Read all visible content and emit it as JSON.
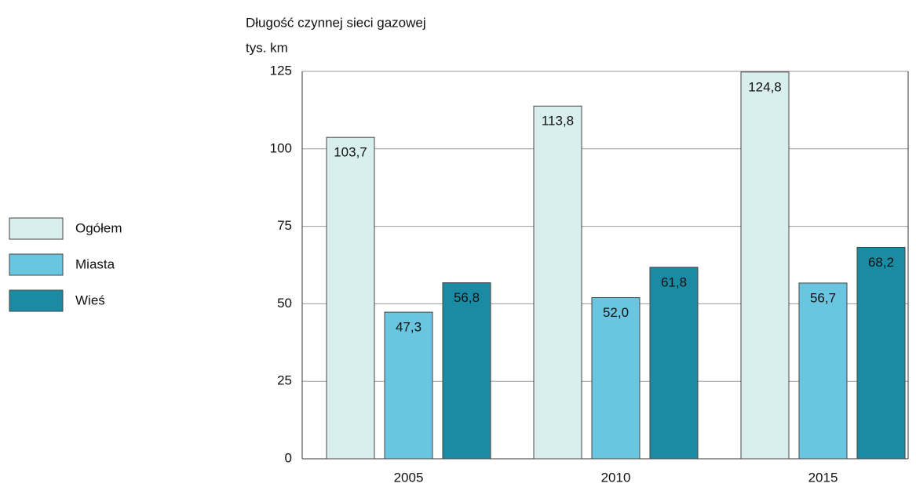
{
  "chart_data": {
    "type": "bar",
    "title": "Długość czynnej sieci gazowej",
    "y_label": "tys. km",
    "categories": [
      "2005",
      "2010",
      "2015"
    ],
    "series": [
      {
        "name": "Ogółem",
        "color": "#d9efee",
        "values": [
          103.7,
          113.8,
          124.8
        ],
        "value_labels": [
          "103,7",
          "113,8",
          "124,8"
        ]
      },
      {
        "name": "Miasta",
        "color": "#6ac6e0",
        "values": [
          47.3,
          52.0,
          56.7
        ],
        "value_labels": [
          "47,3",
          "52,0",
          "56,7"
        ]
      },
      {
        "name": "Wieś",
        "color": "#1a8ba3",
        "values": [
          56.8,
          61.8,
          68.2
        ],
        "value_labels": [
          "56,8",
          "61,8",
          "68,2"
        ]
      }
    ],
    "ylim": [
      0,
      125
    ],
    "yticks": [
      0,
      25,
      50,
      75,
      100,
      125
    ],
    "grid": true,
    "legend": "left"
  }
}
